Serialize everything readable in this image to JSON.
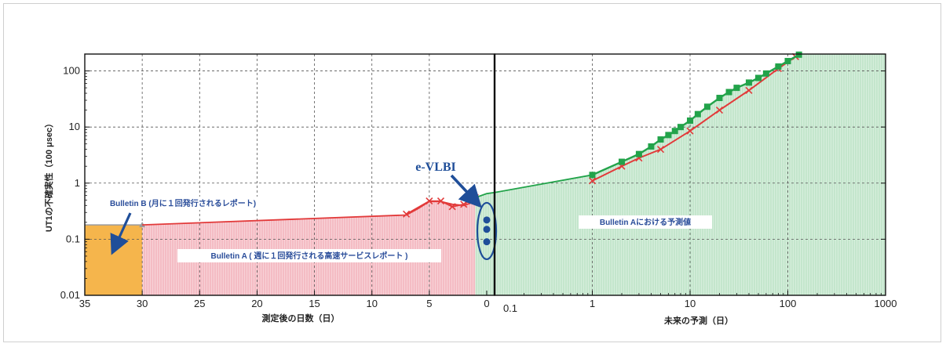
{
  "chart_data": {
    "type": "line",
    "ylabel": "UT1の不確実性（100 μsec）",
    "ylim": [
      0.01,
      200
    ],
    "yscale": "log",
    "yticks": [
      "0.01",
      "0.1",
      "1",
      "10",
      "100"
    ],
    "grid": true,
    "left_panel": {
      "xlabel": "測定後の日数（日）",
      "xlim": [
        35,
        0
      ],
      "xticks": [
        "35",
        "30",
        "25",
        "20",
        "15",
        "10",
        "5",
        "0"
      ],
      "bulletin_b": {
        "label": "Bulletin B (月に１回発行されるレポート)",
        "x": [
          35,
          30
        ],
        "y": 0.18
      },
      "bulletin_a": {
        "label": "Bulletin A ( 週に１回発行される高速サービスレポート )",
        "x": [
          30,
          7,
          6,
          5,
          4,
          3,
          2,
          1,
          0
        ],
        "y": [
          0.18,
          0.27,
          0.35,
          0.47,
          0.47,
          0.42,
          0.4,
          0.47,
          0.65
        ]
      },
      "red_series": {
        "x": [
          7,
          5,
          4,
          3,
          2,
          1
        ],
        "y": [
          0.28,
          0.48,
          0.48,
          0.38,
          0.42,
          0.55
        ]
      },
      "evlbi": {
        "label": "e-VLBI",
        "x": [
          0,
          0,
          0
        ],
        "y": [
          0.22,
          0.15,
          0.09
        ]
      }
    },
    "right_panel": {
      "xlabel": "未来の予測（日）",
      "xscale": "log",
      "xlim": [
        0.1,
        1000
      ],
      "xticks": [
        "0.1",
        "1",
        "10",
        "100",
        "1000"
      ],
      "area_label": "Bulletin Aにおける予測値",
      "series": [
        {
          "color": "#e23a3a",
          "x": [
            1,
            2,
            3,
            5,
            10,
            20,
            40,
            80,
            120
          ],
          "y": [
            1.1,
            2.0,
            2.8,
            4.0,
            8.5,
            20,
            45,
            110,
            180
          ]
        },
        {
          "color": "#22a34a",
          "x": [
            1,
            2,
            3,
            4,
            5,
            6,
            7,
            8,
            10,
            12,
            15,
            20,
            25,
            30,
            40,
            50,
            60,
            80,
            100,
            130
          ],
          "y": [
            1.4,
            2.4,
            3.3,
            4.5,
            6.0,
            7.2,
            8.5,
            10,
            13,
            17,
            23,
            33,
            42,
            50,
            62,
            75,
            90,
            120,
            150,
            195
          ]
        }
      ]
    }
  },
  "colors": {
    "red": "#e23a3a",
    "green": "#22a34a",
    "blue": "#1f4e99",
    "orange_fill": "#f5b54c",
    "pink_fill": "#f7c8cf",
    "green_fill": "#cfe9d6"
  },
  "annotations": {
    "bulletin_b": "Bulletin B (月に１回発行されるレポート)",
    "bulletin_a": "Bulletin A ( 週に１回発行される高速サービスレポート )",
    "bulletin_a_pred": "Bulletin Aにおける予測値",
    "evlbi": "e-VLBI"
  },
  "labels": {
    "ylabel": "UT1の不確実性（100 μsec）",
    "xlabel_left": "測定後の日数（日）",
    "xlabel_right": "未来の予測（日）"
  }
}
